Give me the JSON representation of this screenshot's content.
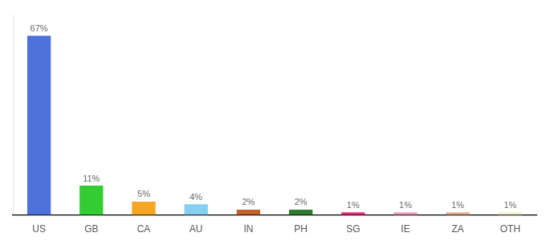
{
  "chart_data": {
    "type": "bar",
    "categories": [
      "US",
      "GB",
      "CA",
      "AU",
      "IN",
      "PH",
      "SG",
      "IE",
      "ZA",
      "OTH"
    ],
    "values": [
      67,
      11,
      5,
      4,
      2,
      2,
      1,
      1,
      1,
      1
    ],
    "value_labels": [
      "67%",
      "11%",
      "5%",
      "4%",
      "2%",
      "2%",
      "1%",
      "1%",
      "1%",
      "1%"
    ],
    "data_labels": true,
    "colors": [
      "#4d72d9",
      "#33cc33",
      "#f5a623",
      "#85d0f0",
      "#c0622a",
      "#2e7d32",
      "#e83080",
      "#f0a0b8",
      "#e8b090",
      "#f5f0d0"
    ],
    "ylim": [
      0,
      75
    ],
    "grid": false,
    "tick_labels": "x"
  }
}
